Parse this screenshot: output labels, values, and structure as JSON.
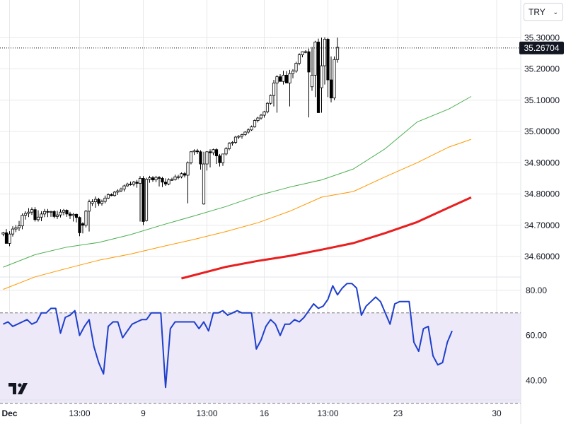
{
  "currency_selector": {
    "label": "TRY",
    "chevron_icon": "chevron-down-icon"
  },
  "last_price_label": "35.26704",
  "logo": "tradingview-logo",
  "colors": {
    "up_candle": "#ffffff",
    "down_candle": "#000000",
    "ma_short": "#4caf50",
    "ma_mid": "#ff9800",
    "ma_long": "#e91e1e",
    "rsi_line": "#1e3fcc",
    "rsi_band": "#ede9f8",
    "grid": "#e8e8e8"
  },
  "chart_data": [
    {
      "type": "candlestick",
      "title": "",
      "xlabel": "",
      "ylabel": "",
      "ylim": [
        34.53,
        35.33
      ],
      "y_ticks": [
        "35.30000",
        "35.20000",
        "35.10000",
        "35.00000",
        "34.90000",
        "34.80000",
        "34.70000",
        "34.60000"
      ],
      "x_ticks": [
        "Dec",
        "13:00",
        "9",
        "13:00",
        "16",
        "13:00",
        "23",
        "30"
      ],
      "x_tick_index": [
        2,
        24,
        44,
        64,
        82,
        102,
        124,
        155
      ],
      "grid": true,
      "last_price_line": 35.26704,
      "candles": {
        "open": [
          34.672,
          34.676,
          34.642,
          34.672,
          34.688,
          34.692,
          34.698,
          34.732,
          34.738,
          34.742,
          34.75,
          34.718,
          34.726,
          34.736,
          34.744,
          34.742,
          34.744,
          34.728,
          34.733,
          34.742,
          34.748,
          34.736,
          34.731,
          34.735,
          34.725,
          34.705,
          34.7,
          34.745,
          34.77,
          34.775,
          34.783,
          34.77,
          34.776,
          34.787,
          34.798,
          34.795,
          34.806,
          34.81,
          34.816,
          34.826,
          34.832,
          34.831,
          34.838,
          34.834,
          34.85,
          34.715,
          34.847,
          34.852,
          34.845,
          34.853,
          34.85,
          34.838,
          34.832,
          34.846,
          34.846,
          34.855,
          34.855,
          34.865,
          34.86,
          34.9,
          34.935,
          34.938,
          34.935,
          34.768,
          34.896,
          34.935,
          34.932,
          34.942,
          34.922,
          34.9,
          34.928,
          34.945,
          34.962,
          34.965,
          34.982,
          34.985,
          34.99,
          34.998,
          35.005,
          35.015,
          35.035,
          35.043,
          35.052,
          35.063,
          35.09,
          35.115,
          35.155,
          35.175,
          35.16,
          35.18,
          35.155,
          35.185,
          35.193,
          35.218,
          35.245,
          35.255,
          35.255,
          35.143,
          35.18,
          35.286,
          35.14,
          35.21,
          35.295,
          35.165,
          35.107,
          35.23
        ],
        "high": [
          34.679,
          34.688,
          34.681,
          34.697,
          34.701,
          34.714,
          34.738,
          34.745,
          34.755,
          34.757,
          34.758,
          34.748,
          34.745,
          34.752,
          34.752,
          34.746,
          34.748,
          34.746,
          34.751,
          34.752,
          34.751,
          34.743,
          34.739,
          34.737,
          34.728,
          34.71,
          34.749,
          34.782,
          34.783,
          34.792,
          34.788,
          34.782,
          34.795,
          34.802,
          34.802,
          34.81,
          34.815,
          34.82,
          34.83,
          34.836,
          34.84,
          34.842,
          34.845,
          34.857,
          34.857,
          34.852,
          34.858,
          34.857,
          34.858,
          34.857,
          34.855,
          34.85,
          34.85,
          34.852,
          34.862,
          34.861,
          34.869,
          34.87,
          34.904,
          34.937,
          34.943,
          34.944,
          34.94,
          34.935,
          34.937,
          34.943,
          34.945,
          34.946,
          34.928,
          34.926,
          34.95,
          34.966,
          34.969,
          34.986,
          34.988,
          34.993,
          35.001,
          35.01,
          35.019,
          35.039,
          35.047,
          35.056,
          35.066,
          35.094,
          35.118,
          35.165,
          35.18,
          35.183,
          35.194,
          35.193,
          35.197,
          35.199,
          35.223,
          35.25,
          35.256,
          35.26,
          35.265,
          35.27,
          35.29,
          35.297,
          35.3,
          35.301,
          35.299,
          35.24,
          35.24,
          35.3
        ],
        "low": [
          34.665,
          34.664,
          34.633,
          34.664,
          34.678,
          34.682,
          34.687,
          34.718,
          34.726,
          34.733,
          34.712,
          34.712,
          34.713,
          34.726,
          34.726,
          34.727,
          34.722,
          34.72,
          34.725,
          34.732,
          34.727,
          34.72,
          34.712,
          34.709,
          34.665,
          34.674,
          34.693,
          34.68,
          34.762,
          34.756,
          34.762,
          34.763,
          34.77,
          34.784,
          34.793,
          34.792,
          34.797,
          34.806,
          34.808,
          34.823,
          34.827,
          34.825,
          34.82,
          34.712,
          34.7,
          34.712,
          34.836,
          34.839,
          34.838,
          34.824,
          34.822,
          34.826,
          34.828,
          34.842,
          34.843,
          34.847,
          34.85,
          34.853,
          34.77,
          34.895,
          34.925,
          34.928,
          34.878,
          34.766,
          34.875,
          34.885,
          34.924,
          34.896,
          34.888,
          34.89,
          34.923,
          34.94,
          34.955,
          34.96,
          34.976,
          34.977,
          34.986,
          34.993,
          35.002,
          35.012,
          35.029,
          35.038,
          35.044,
          35.058,
          35.086,
          35.08,
          35.06,
          35.17,
          35.15,
          35.157,
          35.08,
          35.17,
          35.188,
          35.212,
          35.237,
          35.25,
          35.045,
          35.13,
          35.11,
          35.075,
          35.06,
          35.15,
          35.11,
          35.093,
          35.1,
          35.22
        ],
        "close": [
          34.676,
          34.642,
          34.672,
          34.688,
          34.692,
          34.698,
          34.732,
          34.738,
          34.742,
          34.75,
          34.718,
          34.726,
          34.736,
          34.744,
          34.742,
          34.744,
          34.728,
          34.733,
          34.742,
          34.748,
          34.736,
          34.731,
          34.735,
          34.725,
          34.676,
          34.7,
          34.745,
          34.775,
          34.775,
          34.783,
          34.77,
          34.776,
          34.787,
          34.798,
          34.795,
          34.806,
          34.81,
          34.816,
          34.826,
          34.832,
          34.831,
          34.838,
          34.834,
          34.85,
          34.712,
          34.847,
          34.852,
          34.845,
          34.853,
          34.85,
          34.838,
          34.832,
          34.846,
          34.846,
          34.855,
          34.855,
          34.865,
          34.86,
          34.9,
          34.935,
          34.938,
          34.935,
          34.896,
          34.896,
          34.935,
          34.932,
          34.942,
          34.922,
          34.9,
          34.928,
          34.945,
          34.962,
          34.965,
          34.982,
          34.985,
          34.99,
          34.998,
          35.005,
          35.015,
          35.035,
          35.043,
          35.052,
          35.063,
          35.09,
          35.115,
          35.155,
          35.175,
          35.16,
          35.18,
          35.155,
          35.185,
          35.193,
          35.218,
          35.245,
          35.255,
          35.255,
          35.19,
          35.18,
          35.286,
          35.06,
          35.21,
          35.295,
          35.165,
          35.107,
          35.23,
          35.269
        ]
      },
      "series": [
        {
          "name": "",
          "x": [
            0,
            10,
            20,
            30,
            40,
            50,
            60,
            70,
            80,
            90,
            100,
            110,
            120,
            130,
            140,
            147
          ],
          "values": [
            34.566,
            34.606,
            34.63,
            34.645,
            34.67,
            34.701,
            34.73,
            34.76,
            34.795,
            34.822,
            34.845,
            34.88,
            34.945,
            35.03,
            35.072,
            35.112
          ]
        },
        {
          "name": "",
          "x": [
            0,
            10,
            20,
            30,
            40,
            50,
            60,
            70,
            80,
            90,
            100,
            110,
            120,
            130,
            140,
            147
          ],
          "values": [
            34.495,
            34.535,
            34.562,
            34.588,
            34.608,
            34.632,
            34.655,
            34.68,
            34.708,
            34.745,
            34.79,
            34.808,
            34.855,
            34.9,
            34.95,
            34.975
          ]
        },
        {
          "name": "",
          "x": [
            56,
            70,
            80,
            90,
            100,
            110,
            120,
            130,
            140,
            147
          ],
          "values": [
            34.53,
            34.567,
            34.586,
            34.602,
            34.622,
            34.643,
            34.675,
            34.71,
            34.757,
            34.789
          ]
        }
      ]
    },
    {
      "type": "line",
      "title": "",
      "xlabel": "",
      "ylabel": "",
      "ylim": [
        30.2,
        86.5
      ],
      "y_ticks": [
        "80.00",
        "60.00",
        "40.00"
      ],
      "band": [
        30,
        70
      ],
      "series": [
        {
          "name": "",
          "values": [
            65,
            66,
            64,
            65,
            66,
            67,
            65,
            66,
            70,
            70,
            72,
            72,
            61,
            68,
            69,
            71,
            60,
            64,
            67,
            55,
            48,
            43,
            64,
            66,
            66,
            59,
            62,
            65,
            66,
            67,
            67,
            70,
            70,
            70,
            37,
            63,
            66,
            66,
            66,
            66,
            66,
            63,
            66,
            62,
            70,
            70,
            71,
            69,
            70,
            71,
            70,
            70,
            70,
            54,
            58,
            64,
            67,
            65,
            60,
            65,
            65,
            67,
            66,
            68,
            71,
            74,
            72,
            73,
            76,
            82,
            78,
            81,
            83,
            83,
            81,
            69,
            73,
            75,
            77,
            75,
            70,
            65,
            74,
            75,
            75,
            75,
            57,
            53,
            63,
            64,
            51,
            47,
            48,
            57,
            62
          ]
        }
      ]
    }
  ]
}
